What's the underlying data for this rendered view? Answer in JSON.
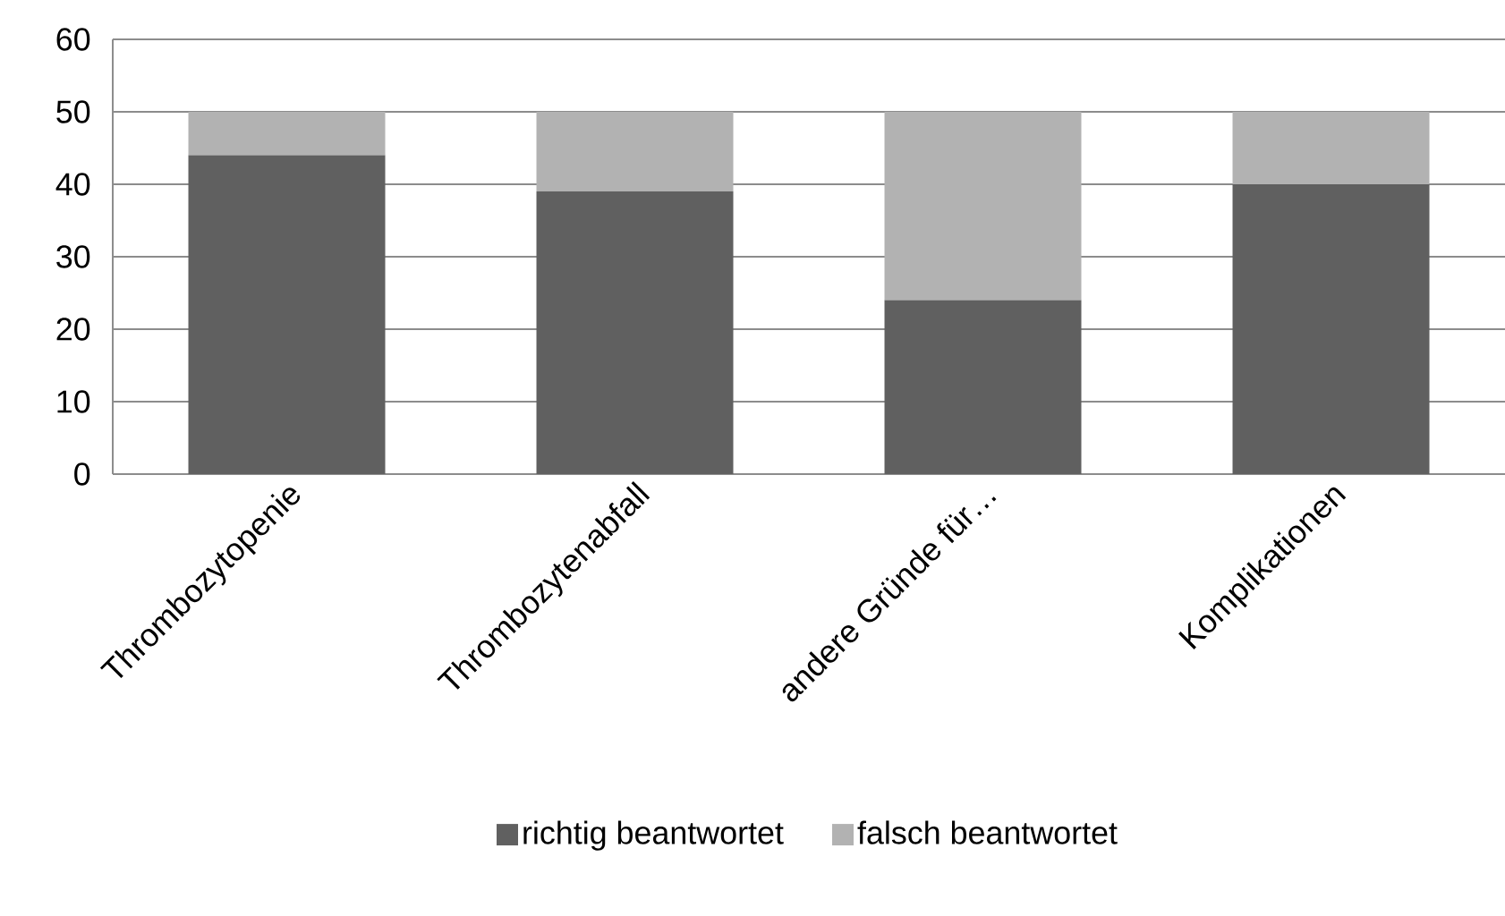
{
  "chart_data": {
    "type": "bar",
    "stacked": true,
    "categories": [
      "Thrombozytopenie",
      "Thrombozytenabfall",
      "andere Gründe für…",
      "Komplikationen"
    ],
    "series": [
      {
        "name": "richtig beantwortet",
        "color": "#606060",
        "values": [
          44,
          39,
          24,
          40
        ]
      },
      {
        "name": "falsch beantwortet",
        "color": "#b2b2b2",
        "values": [
          6,
          11,
          26,
          10
        ]
      }
    ],
    "ylim": [
      0,
      60
    ],
    "yticks": [
      0,
      10,
      20,
      30,
      40,
      50,
      60
    ],
    "grid": "y",
    "legend": "bottom"
  }
}
